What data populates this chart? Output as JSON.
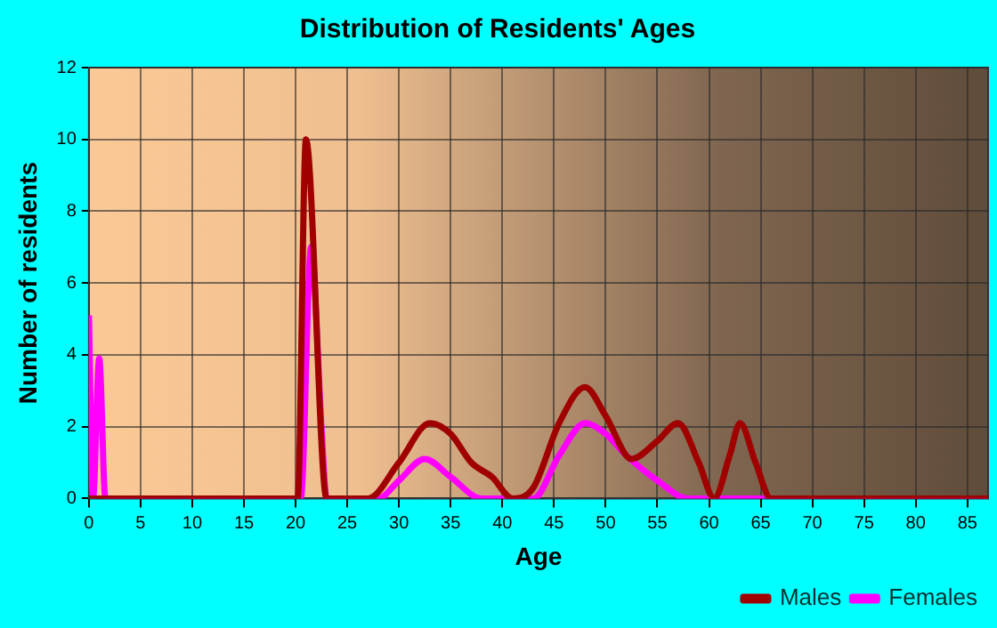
{
  "chart_data": {
    "type": "line",
    "title": "Distribution of Residents' Ages",
    "xlabel": "Age",
    "ylabel": "Number of residents",
    "xlim": [
      0,
      87
    ],
    "xticks": [
      0,
      5,
      10,
      15,
      20,
      25,
      30,
      35,
      40,
      45,
      50,
      55,
      60,
      65,
      70,
      75,
      80,
      85
    ],
    "ylim": [
      0,
      12
    ],
    "yticks": [
      0,
      2,
      4,
      6,
      8,
      10,
      12
    ],
    "grid": true,
    "legend": "bottom right",
    "marker": "none",
    "line_style": "solid",
    "series": [
      {
        "name": "Males",
        "color": "#a00000",
        "x": [
          0,
          19.5,
          20.2,
          21,
          23,
          27,
          30,
          33,
          35,
          37,
          39,
          41,
          43,
          45.5,
          48,
          50,
          52.5,
          55,
          57,
          59,
          60.5,
          62,
          63,
          64.5,
          66,
          70,
          87
        ],
        "values": [
          0,
          0,
          0,
          10,
          0,
          0,
          1,
          2.1,
          1.8,
          1,
          0.6,
          0,
          0.3,
          2.1,
          3.1,
          2.3,
          1.1,
          1.6,
          2.1,
          1,
          0,
          1.2,
          2.1,
          1,
          0,
          0,
          0
        ]
      },
      {
        "name": "Females",
        "color": "#ff00ff",
        "x": [
          0,
          0.4,
          1,
          1.6,
          2,
          20.5,
          21.5,
          22.5,
          23,
          28,
          30,
          32.5,
          35,
          38,
          43,
          45.5,
          48,
          50,
          52,
          55,
          58,
          67,
          87
        ],
        "values": [
          5.1,
          0,
          3.9,
          0,
          0,
          0,
          7,
          2,
          0,
          0,
          0.5,
          1.1,
          0.6,
          0,
          0,
          1.2,
          2.1,
          1.8,
          1.2,
          0.5,
          0,
          0,
          0
        ]
      }
    ]
  }
}
